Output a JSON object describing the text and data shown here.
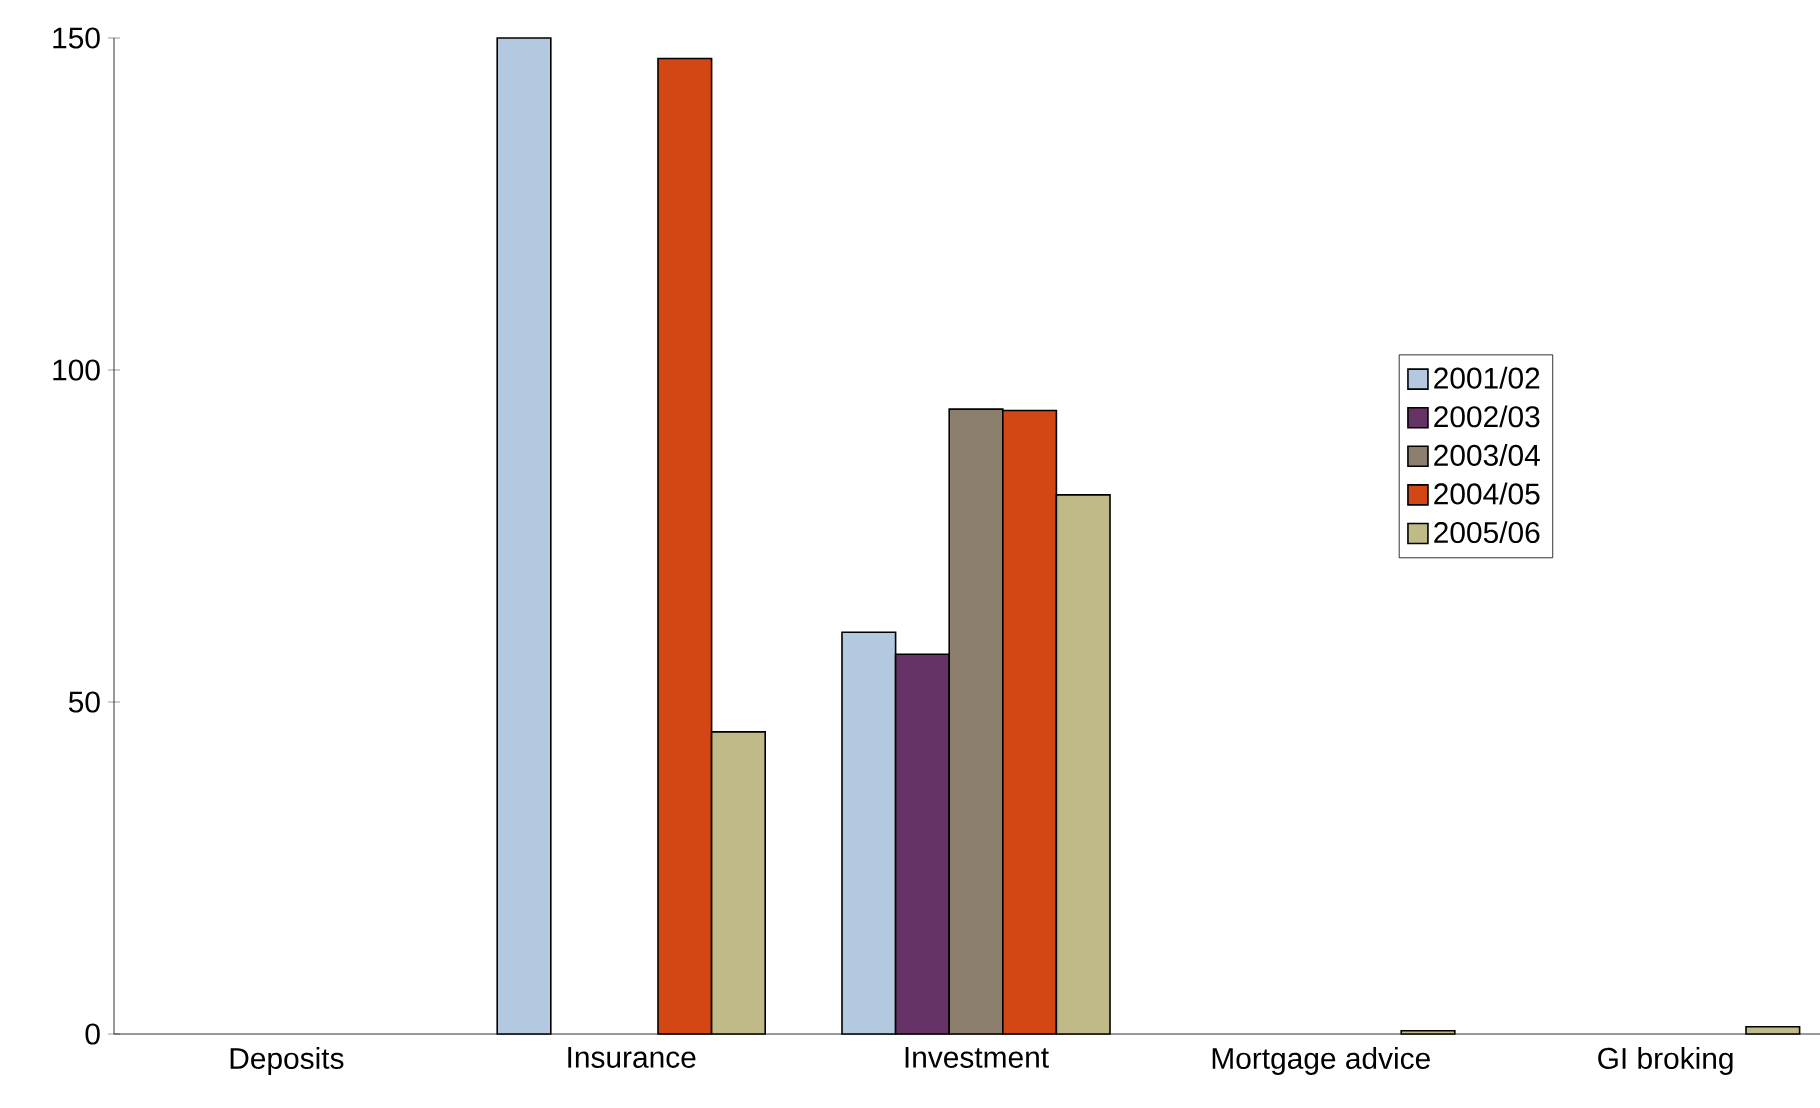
{
  "chart_data": {
    "type": "bar",
    "categories": [
      "Deposits",
      "Insurance",
      "Investment",
      "Mortgage advice",
      "GI broking"
    ],
    "series": [
      {
        "name": "2001/02",
        "color": "#b3c9df",
        "values": [
          null,
          150,
          60.5,
          null,
          null
        ]
      },
      {
        "name": "2002/03",
        "color": "#663366",
        "values": [
          null,
          null,
          57.2,
          null,
          null
        ]
      },
      {
        "name": "2003/04",
        "color": "#8c7f6e",
        "values": [
          null,
          null,
          94.1,
          null,
          null
        ]
      },
      {
        "name": "2004/05",
        "color": "#d24714",
        "values": [
          null,
          146.9,
          93.9,
          null,
          null
        ]
      },
      {
        "name": "2005/06",
        "color": "#bfba88",
        "values": [
          null,
          45.5,
          81.2,
          0.5,
          1.1
        ]
      }
    ],
    "ylim": [
      0,
      150
    ],
    "yticks": [
      0,
      50,
      100,
      150
    ],
    "grid": false,
    "legend": "right"
  }
}
